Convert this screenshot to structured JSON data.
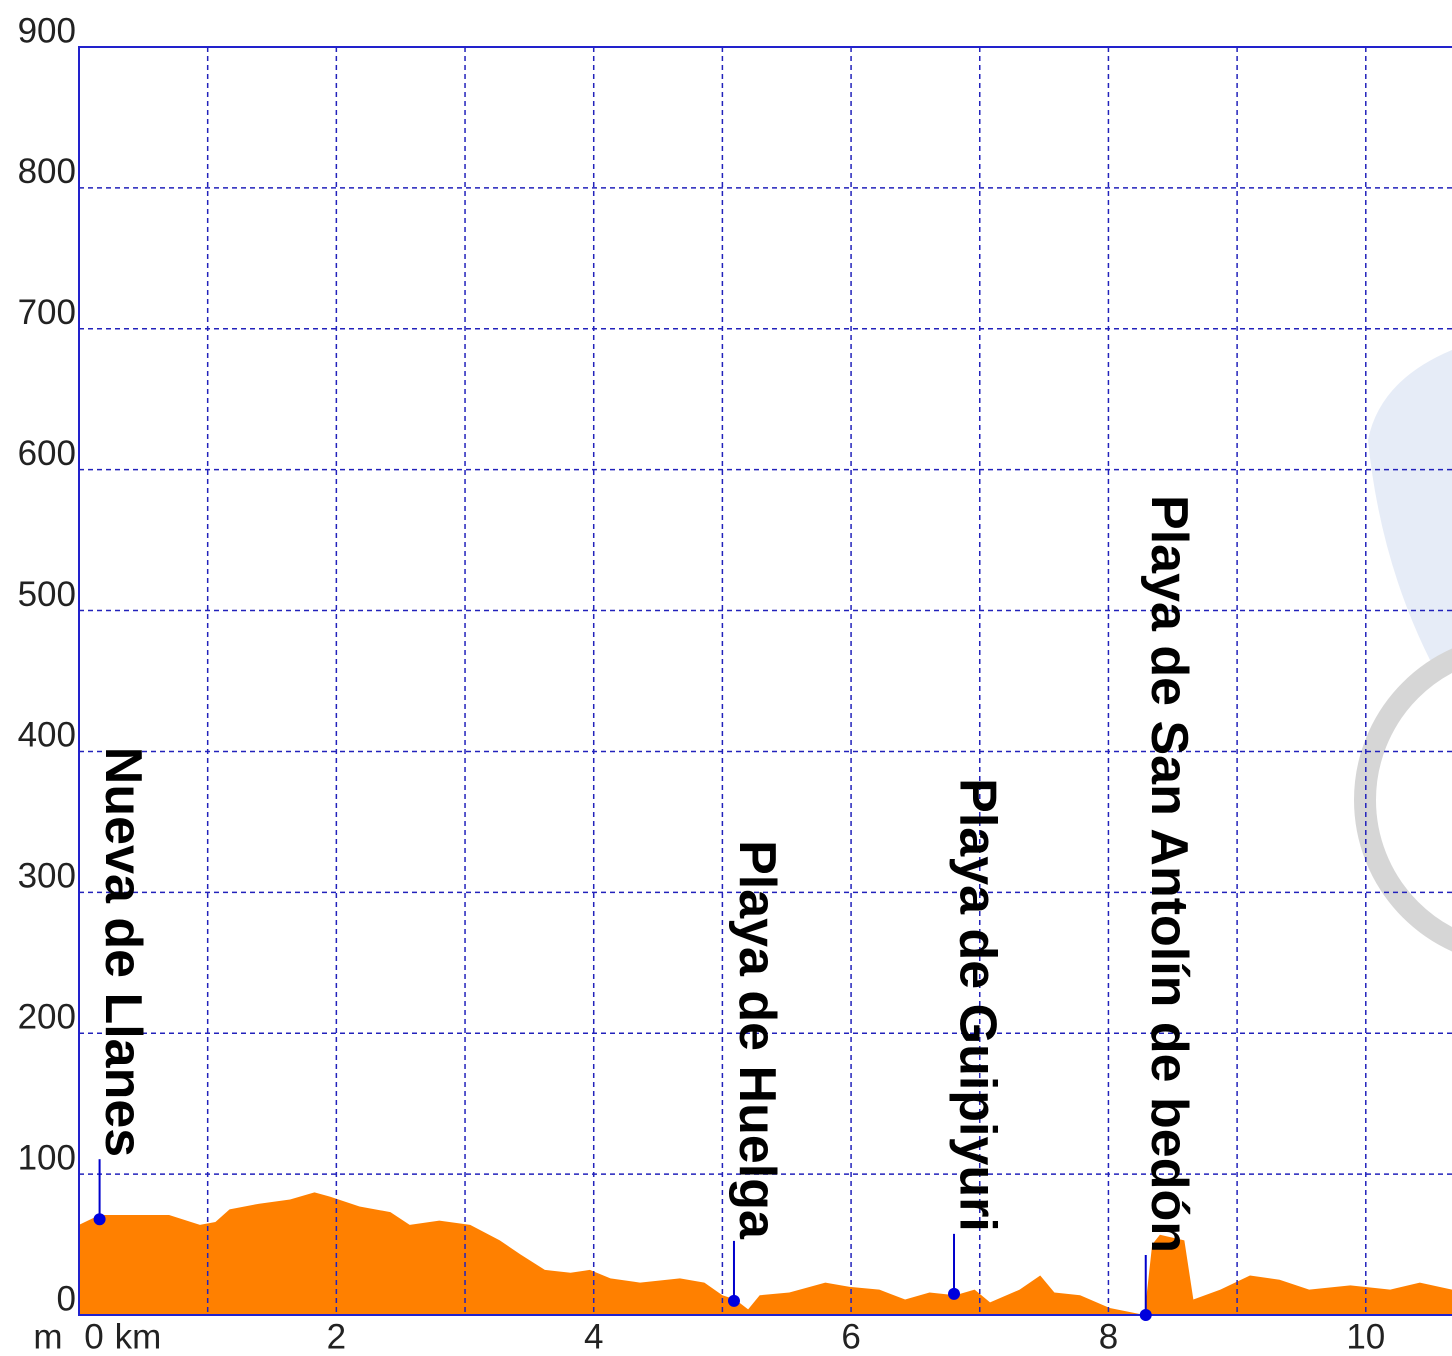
{
  "chart_data": {
    "type": "area",
    "xlabel": "km",
    "ylabel": "m",
    "x": [
      0,
      0.16,
      0.4,
      0.7,
      0.94,
      1.06,
      1.17,
      1.4,
      1.64,
      1.83,
      1.95,
      2.18,
      2.42,
      2.57,
      2.8,
      3.04,
      3.27,
      3.43,
      3.62,
      3.82,
      3.97,
      4.13,
      4.36,
      4.67,
      4.86,
      5.0,
      5.1,
      5.2,
      5.29,
      5.52,
      5.8,
      5.99,
      6.22,
      6.42,
      6.61,
      6.81,
      6.96,
      7.08,
      7.31,
      7.47,
      7.58,
      7.78,
      8.01,
      8.28,
      8.34,
      8.4,
      8.59,
      8.66,
      8.87,
      9.1,
      9.33,
      9.56,
      9.88,
      10.19,
      10.42,
      10.67
    ],
    "values": [
      64,
      71,
      71,
      71,
      64,
      66,
      75,
      79,
      82,
      87,
      84,
      77,
      73,
      64,
      67,
      64,
      53,
      43,
      32,
      30,
      32,
      26,
      23,
      26,
      23,
      14,
      11,
      4,
      14,
      16,
      23,
      20,
      18,
      11,
      16,
      14,
      18,
      9,
      18,
      28,
      16,
      14,
      5,
      0,
      50,
      57,
      53,
      11,
      18,
      28,
      25,
      18,
      21,
      18,
      23,
      18
    ],
    "color": "#ff8000",
    "xlim": [
      0,
      10.67
    ],
    "ylim": [
      0,
      900
    ],
    "xticks": [
      0,
      2,
      4,
      6,
      8,
      10
    ],
    "xminor": [
      1,
      3,
      5,
      7,
      9
    ],
    "yticks": [
      0,
      100,
      200,
      300,
      400,
      500,
      600,
      700,
      800,
      900
    ],
    "grid": true,
    "annotations": [
      {
        "label": "Nueva de Llanes",
        "x": 0.16,
        "y": 68
      },
      {
        "label": "Playa de Huelga",
        "x": 5.09,
        "y": 10
      },
      {
        "label": "Playa de Guipiyuri",
        "x": 6.8,
        "y": 15
      },
      {
        "label": "Playa de San Antolín de bedón",
        "x": 8.29,
        "y": 0
      }
    ]
  }
}
